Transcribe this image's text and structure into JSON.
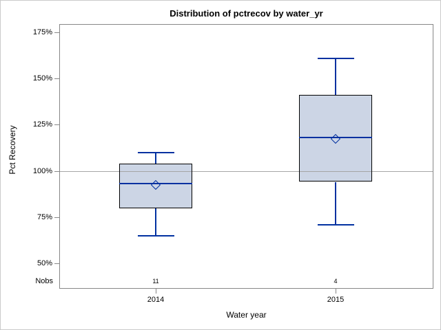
{
  "window": {
    "title": "Distribution of pctrecov by water_yr"
  },
  "colors": {
    "accent_line": "#0030a0",
    "box_fill": "#ccd5e5",
    "box_border": "#000000",
    "reference_line": "#a5a5a5",
    "wall": "#868686",
    "frame": "#cacaca",
    "text": "#000000",
    "background": "#ffffff"
  },
  "chart_data": {
    "type": "boxplot",
    "title": "Distribution of pctrecov by water_yr",
    "xlabel": "Water year",
    "ylabel": "Pct Recovery",
    "nobs_label": "Nobs",
    "y_tick_values": [
      175,
      150,
      125,
      100,
      75,
      50
    ],
    "y_tick_labels": [
      "175%",
      "150%",
      "125%",
      "100%",
      "75%",
      "50%"
    ],
    "ylim": [
      36,
      180
    ],
    "grid": "off",
    "reference_line": 100,
    "categories": [
      "2014",
      "2015"
    ],
    "groups": [
      {
        "label": "2014",
        "nobs": 11,
        "whisker_low": 65,
        "q1": 80,
        "median": 93,
        "mean": 92.5,
        "q3": 104,
        "whisker_high": 110
      },
      {
        "label": "2015",
        "nobs": 4,
        "whisker_low": 71,
        "q1": 94,
        "median": 118,
        "mean": 117.5,
        "q3": 141,
        "whisker_high": 161
      }
    ]
  }
}
